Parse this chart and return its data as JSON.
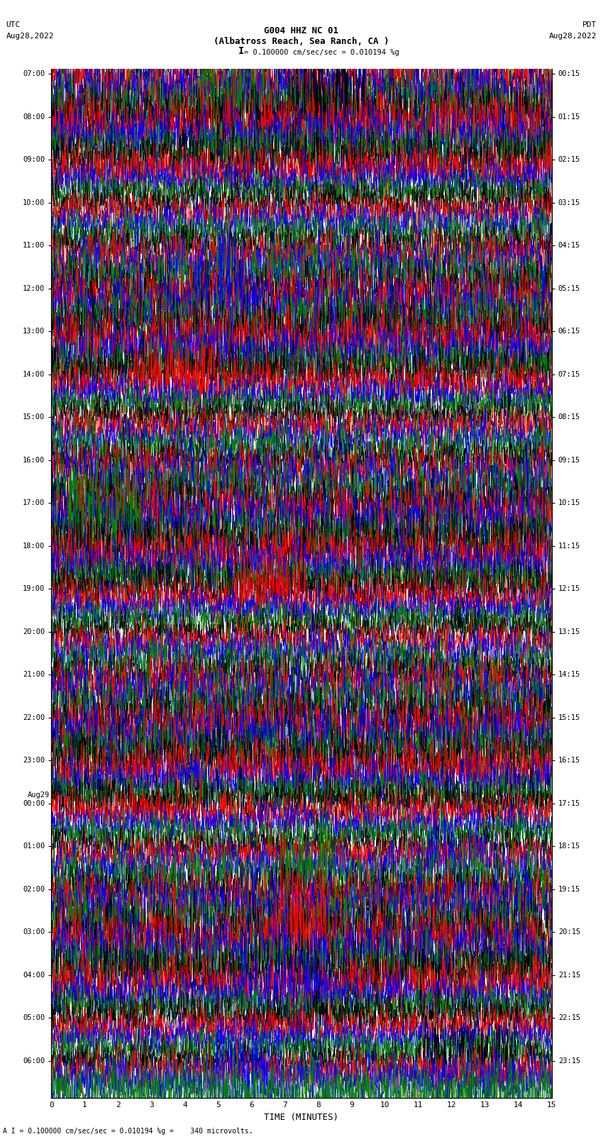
{
  "title_line1": "G004 HHZ NC 01",
  "title_line2": "(Albatross Reach, Sea Ranch, CA )",
  "scale_text": "= 0.100000 cm/sec/sec = 0.010194 %g",
  "footer_text": "A I = 0.100000 cm/sec/sec = 0.010194 %g =    340 microvolts.",
  "xlabel": "TIME (MINUTES)",
  "left_times": [
    "07:00",
    "08:00",
    "09:00",
    "10:00",
    "11:00",
    "12:00",
    "13:00",
    "14:00",
    "15:00",
    "16:00",
    "17:00",
    "18:00",
    "19:00",
    "20:00",
    "21:00",
    "22:00",
    "23:00",
    "00:00",
    "01:00",
    "02:00",
    "03:00",
    "04:00",
    "05:00",
    "06:00"
  ],
  "right_times": [
    "00:15",
    "01:15",
    "02:15",
    "03:15",
    "04:15",
    "05:15",
    "06:15",
    "07:15",
    "08:15",
    "09:15",
    "10:15",
    "11:15",
    "12:15",
    "13:15",
    "14:15",
    "15:15",
    "16:15",
    "17:15",
    "18:15",
    "19:15",
    "20:15",
    "21:15",
    "22:15",
    "23:15"
  ],
  "colors": [
    "black",
    "red",
    "blue",
    "green"
  ],
  "n_rows": 24,
  "n_traces_per_row": 4,
  "xmin": 0,
  "xmax": 15,
  "xticks": [
    0,
    1,
    2,
    3,
    4,
    5,
    6,
    7,
    8,
    9,
    10,
    11,
    12,
    13,
    14,
    15
  ],
  "fig_width": 8.5,
  "fig_height": 16.13,
  "dpi": 100,
  "background_color": "white",
  "aug29_row": 17
}
